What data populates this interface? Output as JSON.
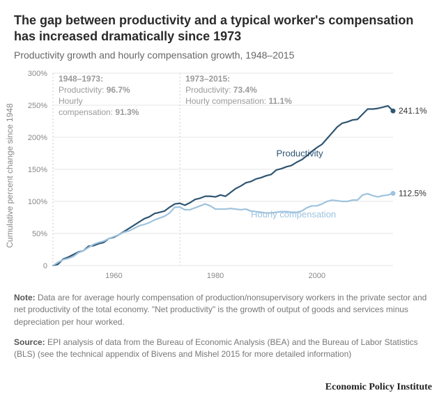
{
  "title": "The gap between productivity and a typical worker's compensation has increased dramatically since 1973",
  "subtitle": "Productivity growth and hourly compensation growth, 1948–2015",
  "y_axis_title": "Cumulative percent change since 1948",
  "note_label": "Note:",
  "note_text": " Data are for average hourly compensation of production/nonsupervisory workers in the private sector and net productivity of the total economy. \"Net productivity\" is the growth of output of goods and services minus depreciation per hour worked.",
  "source_label": "Source:",
  "source_text": " EPI analysis of data from the Bureau of Economic Analysis (BEA) and the Bureau of Labor Statistics (BLS) (see the technical appendix of Bivens and Mishel 2015 for more detailed information)",
  "logo_text": "Economic Policy Institute",
  "chart": {
    "type": "line",
    "background_color": "#ffffff",
    "grid_color": "#e4e4e4",
    "axis_color": "#e4e4e4",
    "tick_label_color": "#888888",
    "tick_fontsize": 11,
    "annotation_color": "#9a9a9a",
    "annotation_fontsize": 12,
    "x": {
      "min": 1948,
      "max": 2015,
      "ticks": [
        1960,
        1980,
        2000
      ]
    },
    "y": {
      "min": 0,
      "max": 300,
      "ticks": [
        0,
        50,
        100,
        150,
        200,
        250,
        300
      ],
      "suffix": "%"
    },
    "divider": {
      "year": 1973,
      "color": "#cccccc",
      "dash": "2,3"
    },
    "left_region": {
      "title": "1948–1973:",
      "lines": [
        "Productivity: 96.7%",
        "Hourly",
        "compensation: 91.3%"
      ]
    },
    "right_region": {
      "title": "1973–2015:",
      "lines": [
        "Productivity: 73.4%",
        "Hourly compensation: 11.1%"
      ]
    },
    "series": [
      {
        "name": "Productivity",
        "color": "#2f5571",
        "width": 2.2,
        "label": "Productivity",
        "label_pos": {
          "x": 1992,
          "y": 170
        },
        "end_label": "241.1%",
        "end_marker": true,
        "points": [
          [
            1948,
            0
          ],
          [
            1949,
            2
          ],
          [
            1950,
            10
          ],
          [
            1951,
            13
          ],
          [
            1952,
            17
          ],
          [
            1953,
            21
          ],
          [
            1954,
            23
          ],
          [
            1955,
            30
          ],
          [
            1956,
            31
          ],
          [
            1957,
            34
          ],
          [
            1958,
            36
          ],
          [
            1959,
            42
          ],
          [
            1960,
            44
          ],
          [
            1961,
            48
          ],
          [
            1962,
            53
          ],
          [
            1963,
            58
          ],
          [
            1964,
            63
          ],
          [
            1965,
            68
          ],
          [
            1966,
            73
          ],
          [
            1967,
            76
          ],
          [
            1968,
            81
          ],
          [
            1969,
            83
          ],
          [
            1970,
            85
          ],
          [
            1971,
            91
          ],
          [
            1972,
            96
          ],
          [
            1973,
            97
          ],
          [
            1974,
            94
          ],
          [
            1975,
            98
          ],
          [
            1976,
            103
          ],
          [
            1977,
            105
          ],
          [
            1978,
            108
          ],
          [
            1979,
            108
          ],
          [
            1980,
            107
          ],
          [
            1981,
            110
          ],
          [
            1982,
            108
          ],
          [
            1983,
            114
          ],
          [
            1984,
            120
          ],
          [
            1985,
            124
          ],
          [
            1986,
            129
          ],
          [
            1987,
            131
          ],
          [
            1988,
            135
          ],
          [
            1989,
            137
          ],
          [
            1990,
            140
          ],
          [
            1991,
            142
          ],
          [
            1992,
            149
          ],
          [
            1993,
            151
          ],
          [
            1994,
            154
          ],
          [
            1995,
            156
          ],
          [
            1996,
            161
          ],
          [
            1997,
            165
          ],
          [
            1998,
            171
          ],
          [
            1999,
            178
          ],
          [
            2000,
            184
          ],
          [
            2001,
            189
          ],
          [
            2002,
            198
          ],
          [
            2003,
            207
          ],
          [
            2004,
            216
          ],
          [
            2005,
            222
          ],
          [
            2006,
            224
          ],
          [
            2007,
            227
          ],
          [
            2008,
            228
          ],
          [
            2009,
            236
          ],
          [
            2010,
            244
          ],
          [
            2011,
            244
          ],
          [
            2012,
            245
          ],
          [
            2013,
            247
          ],
          [
            2014,
            249
          ],
          [
            2015,
            241.1
          ]
        ]
      },
      {
        "name": "Hourly compensation",
        "color": "#9ec3de",
        "width": 2.2,
        "label": "Hourly compensation",
        "label_pos": {
          "x": 1987,
          "y": 75
        },
        "end_label": "112.5%",
        "end_marker": true,
        "points": [
          [
            1948,
            0
          ],
          [
            1949,
            5
          ],
          [
            1950,
            9
          ],
          [
            1951,
            11
          ],
          [
            1952,
            14
          ],
          [
            1953,
            20
          ],
          [
            1954,
            23
          ],
          [
            1955,
            28
          ],
          [
            1956,
            33
          ],
          [
            1957,
            36
          ],
          [
            1958,
            38
          ],
          [
            1959,
            42
          ],
          [
            1960,
            45
          ],
          [
            1961,
            48
          ],
          [
            1962,
            52
          ],
          [
            1963,
            54
          ],
          [
            1964,
            58
          ],
          [
            1965,
            62
          ],
          [
            1966,
            64
          ],
          [
            1967,
            67
          ],
          [
            1968,
            71
          ],
          [
            1969,
            74
          ],
          [
            1970,
            77
          ],
          [
            1971,
            82
          ],
          [
            1972,
            91
          ],
          [
            1973,
            91
          ],
          [
            1974,
            87
          ],
          [
            1975,
            87
          ],
          [
            1976,
            90
          ],
          [
            1977,
            93
          ],
          [
            1978,
            96
          ],
          [
            1979,
            93
          ],
          [
            1980,
            88
          ],
          [
            1981,
            88
          ],
          [
            1982,
            88
          ],
          [
            1983,
            89
          ],
          [
            1984,
            88
          ],
          [
            1985,
            87
          ],
          [
            1986,
            88
          ],
          [
            1987,
            85
          ],
          [
            1988,
            84
          ],
          [
            1989,
            83
          ],
          [
            1990,
            82
          ],
          [
            1991,
            82
          ],
          [
            1992,
            83
          ],
          [
            1993,
            84
          ],
          [
            1994,
            84
          ],
          [
            1995,
            83
          ],
          [
            1996,
            83
          ],
          [
            1997,
            85
          ],
          [
            1998,
            90
          ],
          [
            1999,
            93
          ],
          [
            2000,
            93
          ],
          [
            2001,
            96
          ],
          [
            2002,
            100
          ],
          [
            2003,
            102
          ],
          [
            2004,
            101
          ],
          [
            2005,
            100
          ],
          [
            2006,
            100
          ],
          [
            2007,
            102
          ],
          [
            2008,
            102
          ],
          [
            2009,
            110
          ],
          [
            2010,
            112
          ],
          [
            2011,
            109
          ],
          [
            2012,
            107
          ],
          [
            2013,
            109
          ],
          [
            2014,
            110
          ],
          [
            2015,
            112.5
          ]
        ]
      }
    ]
  }
}
